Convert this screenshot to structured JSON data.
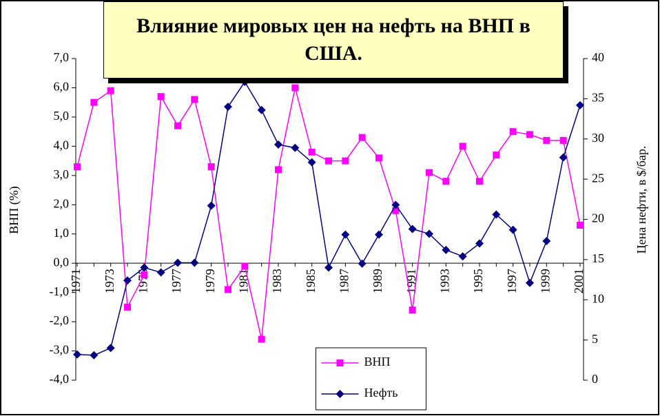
{
  "chart_data": {
    "type": "line",
    "title": "Влияние мировых цен на нефть на ВНП в США.",
    "y_label": "ВНП (%)",
    "y2_label": "Цена нефти, в $/бар.",
    "categories": [
      "1971",
      null,
      "1973",
      null,
      "1975",
      null,
      "1977",
      null,
      "1979",
      null,
      "1981",
      null,
      "1983",
      null,
      "1985",
      null,
      "1987",
      null,
      "1989",
      null,
      "1991",
      null,
      "1993",
      null,
      "1995",
      null,
      "1997",
      null,
      "1999",
      null,
      "2001"
    ],
    "series": [
      {
        "name": "ВНП",
        "color": "#ff00ff",
        "marker": "square",
        "values": [
          3.3,
          5.5,
          5.9,
          -1.5,
          -0.4,
          5.7,
          4.7,
          5.6,
          3.3,
          -0.9,
          -0.1,
          -2.6,
          3.2,
          6.0,
          3.8,
          3.5,
          3.5,
          4.3,
          3.6,
          1.8,
          -1.6,
          3.1,
          2.8,
          4.0,
          2.8,
          3.7,
          4.5,
          4.4,
          4.2,
          4.2,
          1.3
        ]
      },
      {
        "name": "Нефть",
        "color": "#000080",
        "marker": "diamond",
        "axis": "y2",
        "values": [
          3.2,
          3.1,
          4.0,
          12.4,
          14.0,
          13.4,
          14.6,
          14.6,
          21.7,
          34.0,
          37.1,
          33.6,
          29.3,
          28.9,
          27.1,
          14.0,
          18.1,
          14.5,
          18.1,
          21.8,
          18.8,
          18.2,
          16.2,
          15.4,
          17.0,
          20.6,
          18.7,
          12.1,
          17.3,
          27.7,
          34.2
        ]
      }
    ],
    "ylim": [
      -4,
      7
    ],
    "yticks": [
      {
        "value": -4,
        "label": "-4,0"
      },
      {
        "value": -3,
        "label": "-3,0"
      },
      {
        "value": -2,
        "label": "-2,0"
      },
      {
        "value": -1,
        "label": "-1,0"
      },
      {
        "value": 0,
        "label": "0,0"
      },
      {
        "value": 1,
        "label": "1,0"
      },
      {
        "value": 2,
        "label": "2,0"
      },
      {
        "value": 3,
        "label": "3,0"
      },
      {
        "value": 4,
        "label": "4,0"
      },
      {
        "value": 5,
        "label": "5,0"
      },
      {
        "value": 6,
        "label": "6,0"
      },
      {
        "value": 7,
        "label": "7,0"
      }
    ],
    "y2lim": [
      0,
      40
    ],
    "y2ticks": [
      0,
      5,
      10,
      15,
      20,
      25,
      30,
      35,
      40
    ],
    "legend": "bottom-center"
  }
}
